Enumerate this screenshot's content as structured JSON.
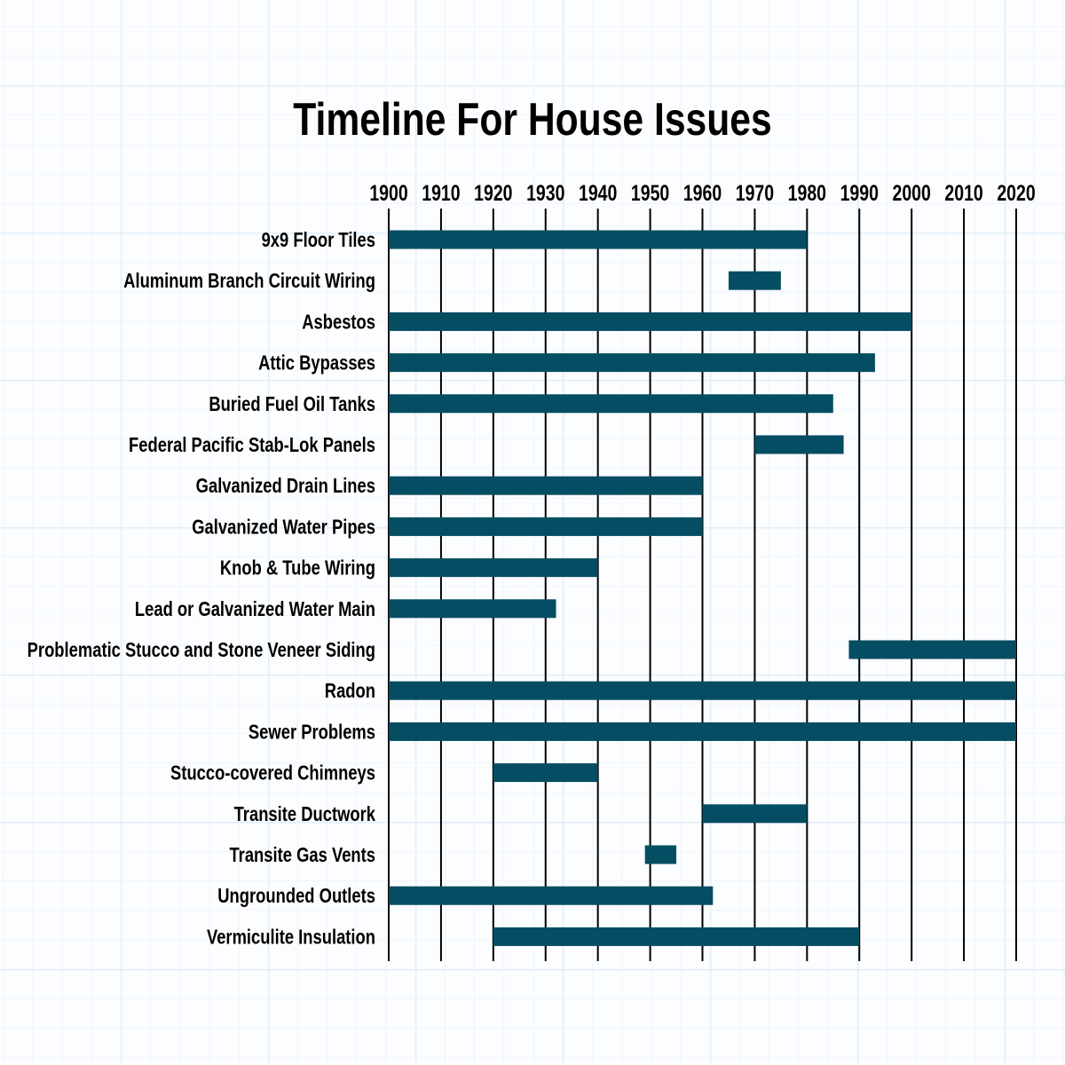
{
  "chart_data": {
    "type": "bar",
    "orientation": "horizontal-range",
    "title": "Timeline For House Issues",
    "xlabel": "",
    "ylabel": "",
    "xlim": [
      1900,
      2020
    ],
    "x_ticks": [
      "1900",
      "1910",
      "1920",
      "1930",
      "1940",
      "1950",
      "1960",
      "1970",
      "1980",
      "1990",
      "2000",
      "2010",
      "2020"
    ],
    "x_axis_position": "top",
    "grid": "vertical lines",
    "bar_color": "#044d62",
    "categories": [
      "9x9 Floor Tiles",
      "Aluminum Branch Circuit Wiring",
      "Asbestos",
      "Attic Bypasses",
      "Buried Fuel Oil Tanks",
      "Federal Pacific Stab-Lok Panels",
      "Galvanized Drain Lines",
      "Galvanized Water Pipes",
      "Knob & Tube Wiring",
      "Lead or Galvanized Water Main",
      "Problematic Stucco and Stone Veneer Siding",
      "Radon",
      "Sewer Problems",
      "Stucco-covered Chimneys",
      "Transite Ductwork",
      "Transite Gas Vents",
      "Ungrounded Outlets",
      "Vermiculite Insulation"
    ],
    "ranges": [
      [
        1900,
        1980
      ],
      [
        1965,
        1975
      ],
      [
        1900,
        2000
      ],
      [
        1900,
        1993
      ],
      [
        1900,
        1985
      ],
      [
        1970,
        1987
      ],
      [
        1900,
        1960
      ],
      [
        1900,
        1960
      ],
      [
        1900,
        1940
      ],
      [
        1900,
        1932
      ],
      [
        1988,
        2020
      ],
      [
        1900,
        2020
      ],
      [
        1900,
        2020
      ],
      [
        1920,
        1940
      ],
      [
        1960,
        1980
      ],
      [
        1949,
        1955
      ],
      [
        1900,
        1962
      ],
      [
        1920,
        1990
      ]
    ]
  }
}
